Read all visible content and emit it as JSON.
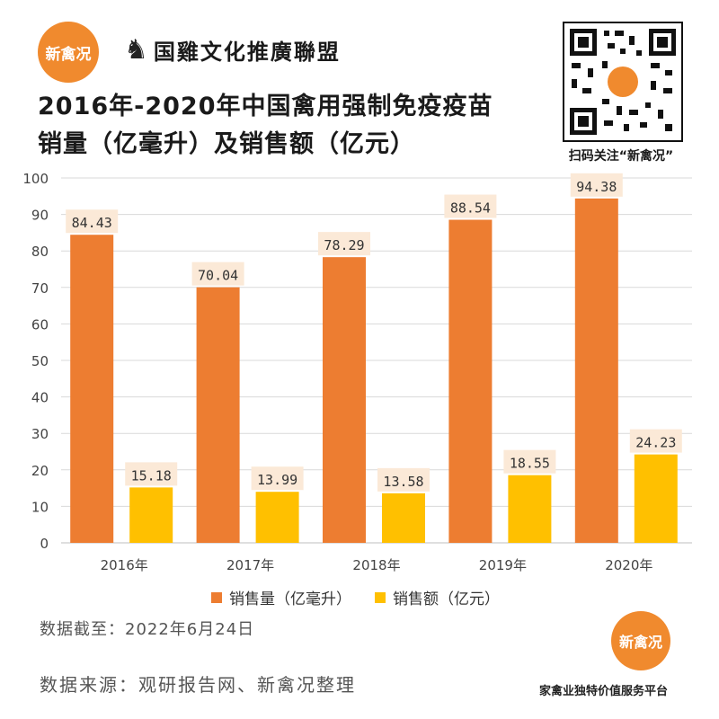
{
  "brand": {
    "badge": "新禽况",
    "name": "国雞文化推廣聯盟"
  },
  "title_lines": [
    "2016年-2020年中国禽用强制免疫疫苗",
    "销量（亿毫升）及销售额（亿元）"
  ],
  "qr": {
    "caption": "扫码关注“新禽况”"
  },
  "colors": {
    "series1": "#ed7d31",
    "series2": "#ffc000",
    "label_bg": "#fbe9d7",
    "grid": "#d9d9d9"
  },
  "chart_data": {
    "type": "bar",
    "categories": [
      "2016年",
      "2017年",
      "2018年",
      "2019年",
      "2020年"
    ],
    "series": [
      {
        "name": "销售量（亿毫升）",
        "values": [
          84.43,
          70.04,
          78.29,
          88.54,
          94.38
        ],
        "labels": [
          "84.43",
          "70.04",
          "78.29",
          "88.54",
          "94.38"
        ]
      },
      {
        "name": "销售额（亿元）",
        "values": [
          15.18,
          13.99,
          13.58,
          18.55,
          24.23
        ],
        "labels": [
          "15.18",
          "13.99",
          "13.58",
          "18.55",
          "24.23"
        ]
      }
    ],
    "ylim": [
      0,
      100
    ],
    "yticks": [
      "0",
      "10",
      "20",
      "30",
      "40",
      "50",
      "60",
      "70",
      "80",
      "90",
      "100"
    ],
    "grid": true,
    "legend": "bottom"
  },
  "footer": {
    "date": "数据截至：2022年6月24日",
    "source": "数据来源：观研报告网、新禽况整理",
    "badge": "新禽况",
    "platform": "家禽业独特价值服务平台"
  }
}
